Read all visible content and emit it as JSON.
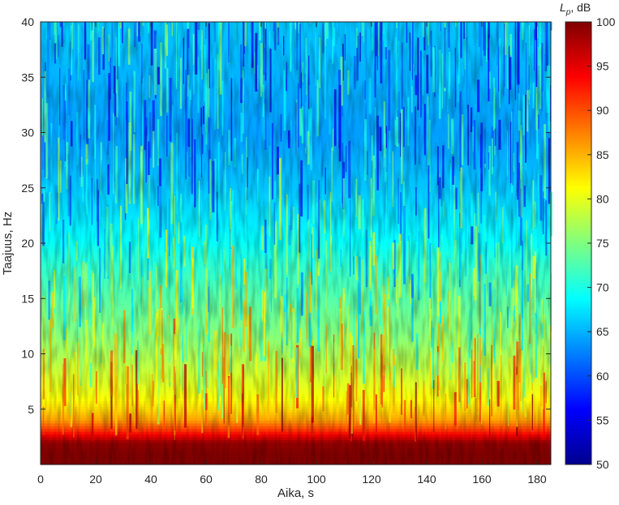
{
  "chart_data": {
    "type": "heatmap",
    "title": "",
    "xlabel": "Aika, s",
    "ylabel": "Taajuus, Hz",
    "xlim": [
      0,
      185
    ],
    "ylim": [
      0,
      40
    ],
    "xticks": [
      0,
      20,
      40,
      60,
      80,
      100,
      120,
      140,
      160,
      180
    ],
    "yticks": [
      5,
      10,
      15,
      20,
      25,
      30,
      35,
      40
    ],
    "colormap": "jet",
    "colorbar": {
      "label_main": "L",
      "label_sub": "p",
      "label_unit": ", dB",
      "range": [
        50,
        100
      ],
      "ticks": [
        50,
        55,
        60,
        65,
        70,
        75,
        80,
        85,
        90,
        95,
        100
      ]
    },
    "profile": {
      "frequency_hz": [
        0,
        1,
        2,
        3,
        4,
        5,
        6,
        8,
        10,
        12,
        15,
        18,
        20,
        25,
        30,
        35,
        40
      ],
      "mean_level_db": [
        100,
        100,
        99,
        92,
        86,
        83,
        81,
        79,
        77,
        75,
        73,
        71,
        69,
        66,
        64,
        65,
        66
      ]
    },
    "grid": false
  }
}
